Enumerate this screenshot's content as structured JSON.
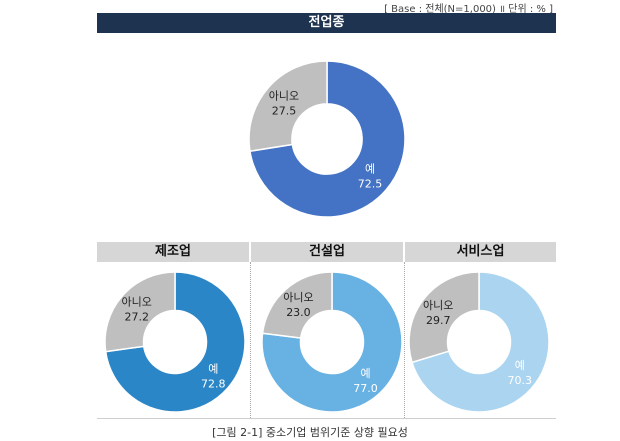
{
  "base_note": "[ Base : 전체(N=1,000) ॥ 단위 : % ]",
  "caption": "[그림 2-1] 중소기업 범위기준 상향 필요성",
  "colors": {
    "header_bg": "#1e3350",
    "sub_header_bg": "#d6d6d6",
    "no_slice": "#bfbfbf"
  },
  "chart_data": [
    {
      "type": "pie",
      "title": "전업종",
      "labels": [
        "예",
        "아니오"
      ],
      "values": [
        72.5,
        27.5
      ],
      "colors": [
        "#4472c4",
        "#bfbfbf"
      ]
    },
    {
      "type": "pie",
      "title": "제조업",
      "labels": [
        "예",
        "아니오"
      ],
      "values": [
        72.8,
        27.2
      ],
      "colors": [
        "#2a86c7",
        "#bfbfbf"
      ]
    },
    {
      "type": "pie",
      "title": "건설업",
      "labels": [
        "예",
        "아니오"
      ],
      "values": [
        77.0,
        23.0
      ],
      "colors": [
        "#67b1e3",
        "#bfbfbf"
      ]
    },
    {
      "type": "pie",
      "title": "서비스업",
      "labels": [
        "예",
        "아니오"
      ],
      "values": [
        70.3,
        29.7
      ],
      "colors": [
        "#aad4ef",
        "#bfbfbf"
      ]
    }
  ]
}
